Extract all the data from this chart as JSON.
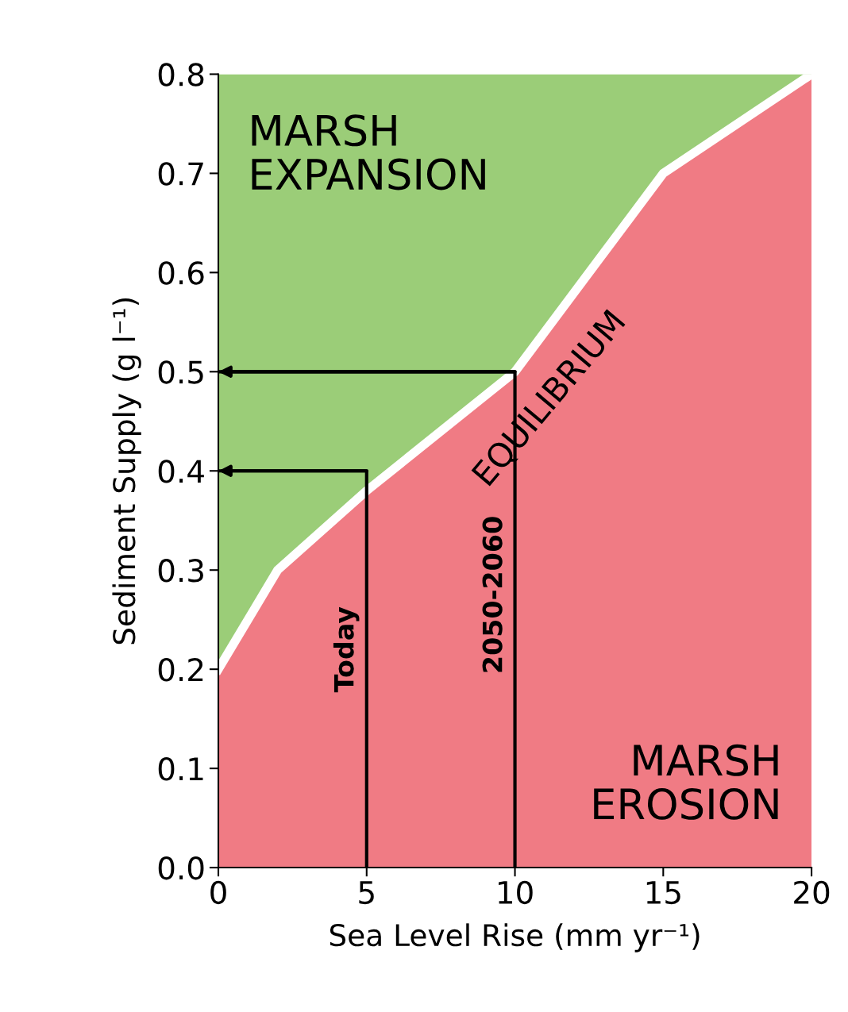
{
  "chart_data": {
    "type": "area",
    "stacked": true,
    "x": [
      0,
      2,
      5,
      10,
      15,
      20
    ],
    "series": [
      {
        "color": "#f07b84",
        "values": [
          0.2,
          0.3,
          0.38,
          0.5,
          0.7,
          0.8
        ]
      },
      {
        "color": "#9bcd78",
        "values": [
          0.6,
          0.5,
          0.42,
          0.3,
          0.1,
          0.0
        ]
      },
      {
        "type": "line",
        "name": "Today",
        "color": "#000000",
        "x": [
          5,
          5,
          0
        ],
        "values": [
          0,
          0.4,
          0.4
        ]
      },
      {
        "type": "line",
        "name": "2050-2060",
        "color": "#000000",
        "x": [
          10,
          10,
          0
        ],
        "values": [
          0,
          0.5,
          0.5
        ]
      }
    ],
    "xlabel": "Sea Level Rise (mm yr⁻¹)",
    "ylabel": "Sediment Supply (g l⁻¹)",
    "xlim": [
      0,
      20
    ],
    "ylim": [
      0,
      0.8
    ],
    "xticks": [
      0,
      5,
      10,
      15,
      20
    ],
    "yticks": [
      {
        "value": 0,
        "label": "0.0"
      },
      0.1,
      0.2,
      0.3,
      0.4,
      0.5,
      0.6,
      0.7,
      0.8
    ],
    "annotations": [
      "MARSH\nEXPANSION",
      "MARSH\nEROSION",
      "EQUILIBRIUM"
    ],
    "grid": false,
    "legend": false
  }
}
